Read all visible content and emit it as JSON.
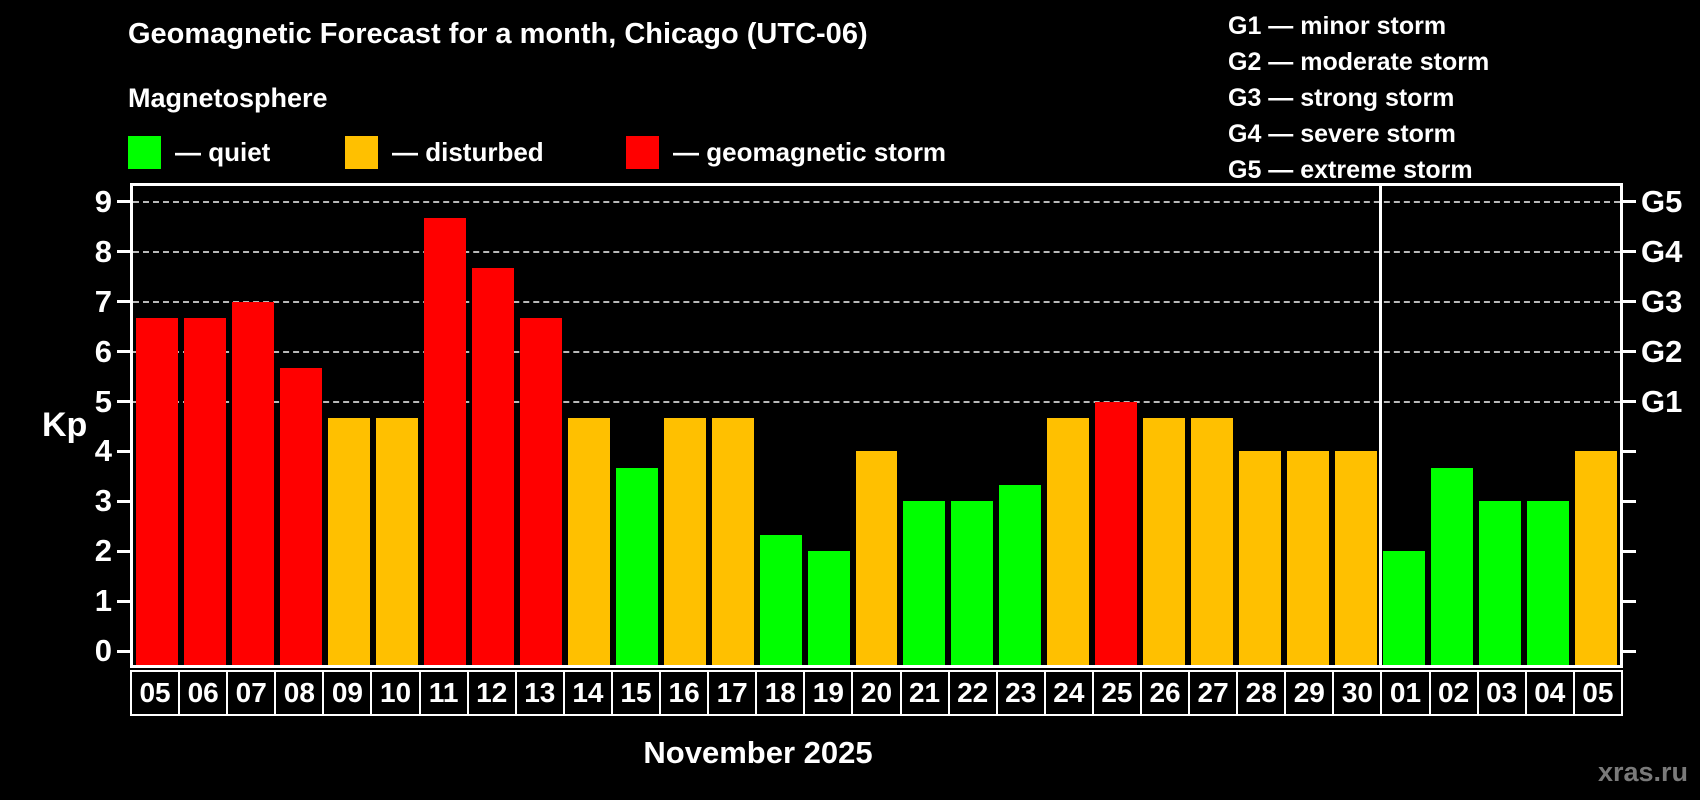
{
  "title": "Geomagnetic Forecast for a month, Chicago (UTC-06)",
  "subtitle": "Magnetosphere",
  "watermark": "xras.ru",
  "colors": {
    "quiet": "#00ff00",
    "disturbed": "#ffc000",
    "storm": "#ff0000",
    "background": "#000000",
    "grid": "#b9b9b9",
    "axis": "#ffffff",
    "watermark": "#7a7a7a"
  },
  "legend": {
    "items": [
      {
        "status": "quiet",
        "label": "— quiet"
      },
      {
        "status": "disturbed",
        "label": "— disturbed"
      },
      {
        "status": "storm",
        "label": "— geomagnetic storm"
      }
    ]
  },
  "g_scale_legend": [
    "G1 — minor storm",
    "G2 — moderate storm",
    "G3 — strong storm",
    "G4 — severe storm",
    "G5 — extreme storm"
  ],
  "chart_data": {
    "type": "bar",
    "title": "Geomagnetic Forecast for a month, Chicago (UTC-06)",
    "xlabel": "November 2025",
    "ylabel": "Kp",
    "ylim": [
      0,
      9.4
    ],
    "y_ticks": [
      0,
      1,
      2,
      3,
      4,
      5,
      6,
      7,
      8,
      9
    ],
    "grid_kp": [
      5,
      6,
      7,
      8,
      9
    ],
    "grid": "horizontal dashed lines at Kp 5-9 only",
    "legend_position": "top-left (status colors) and top-right (G scale)",
    "categories": [
      "05",
      "06",
      "07",
      "08",
      "09",
      "10",
      "11",
      "12",
      "13",
      "14",
      "15",
      "16",
      "17",
      "18",
      "19",
      "20",
      "21",
      "22",
      "23",
      "24",
      "25",
      "26",
      "27",
      "28",
      "29",
      "30",
      "01",
      "02",
      "03",
      "04",
      "05"
    ],
    "values": [
      6.67,
      6.67,
      7.0,
      5.67,
      4.67,
      4.67,
      8.67,
      7.67,
      6.67,
      4.67,
      3.67,
      4.67,
      4.67,
      2.33,
      2.0,
      4.0,
      3.0,
      3.0,
      3.33,
      4.67,
      5.0,
      4.67,
      4.67,
      4.0,
      4.0,
      4.0,
      2.0,
      3.67,
      3.0,
      3.0,
      4.0
    ],
    "statuses": [
      "storm",
      "storm",
      "storm",
      "storm",
      "disturbed",
      "disturbed",
      "storm",
      "storm",
      "storm",
      "disturbed",
      "quiet",
      "disturbed",
      "disturbed",
      "quiet",
      "quiet",
      "disturbed",
      "quiet",
      "quiet",
      "quiet",
      "disturbed",
      "storm",
      "disturbed",
      "disturbed",
      "disturbed",
      "disturbed",
      "disturbed",
      "quiet",
      "quiet",
      "quiet",
      "quiet",
      "disturbed"
    ],
    "month_separator_after_index": 25,
    "right_axis": {
      "labels": [
        "G1",
        "G2",
        "G3",
        "G4",
        "G5"
      ],
      "at_kp": [
        5,
        6,
        7,
        8,
        9
      ]
    }
  }
}
